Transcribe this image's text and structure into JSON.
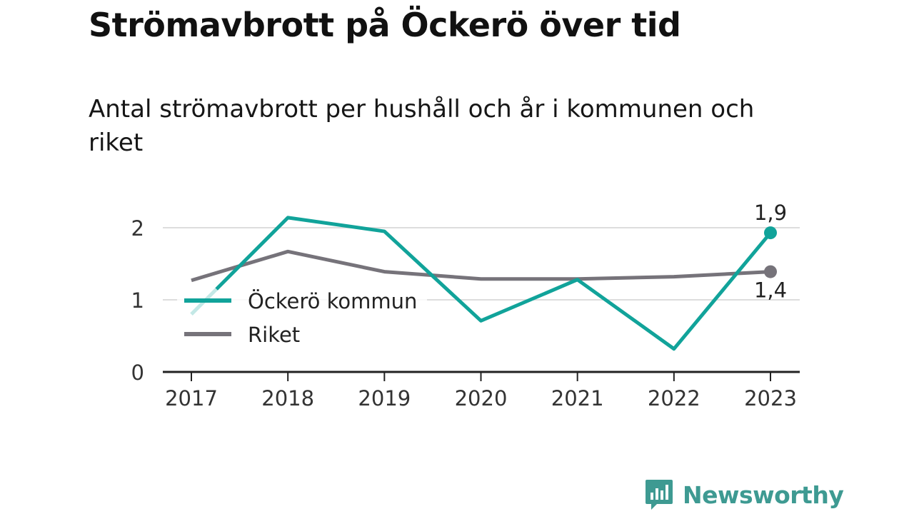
{
  "header": {
    "title": "Strömavbrott på Öckerö över tid",
    "subtitle": "Antal strömavbrott per hushåll och år i kommunen och riket"
  },
  "chart_data": {
    "type": "line",
    "x": [
      "2017",
      "2018",
      "2019",
      "2020",
      "2021",
      "2022",
      "2023"
    ],
    "ylim": [
      0,
      2.3
    ],
    "yticks": [
      "0",
      "1",
      "2"
    ],
    "grid": true,
    "legend_position": "left-center",
    "series": [
      {
        "name": "Öckerö kommun",
        "color": "#11a39a",
        "values": [
          0.8,
          2.14,
          1.95,
          0.71,
          1.28,
          0.32,
          1.93
        ],
        "end_label": "1,9"
      },
      {
        "name": "Riket",
        "color": "#76737a",
        "values": [
          1.27,
          1.67,
          1.39,
          1.29,
          1.29,
          1.32,
          1.39
        ],
        "end_label": "1,4"
      }
    ]
  },
  "brand": {
    "name": "Newsworthy",
    "color": "#3e9a92",
    "icon": "bar-chart-speech-bubble-icon"
  }
}
